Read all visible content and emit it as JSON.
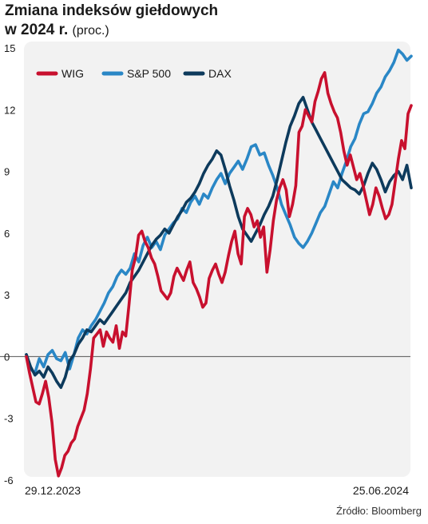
{
  "header": {
    "title_line1": "Zmiana indeksów giełdowych",
    "title_line2": "w 2024 r.",
    "unit": "(proc.)"
  },
  "source": "Źródło: Bloomberg",
  "colors": {
    "wig": "#c8102e",
    "sp500": "#2a87c6",
    "dax": "#0d3a5c",
    "plot_bg": "#f2f2f2",
    "zero_line": "#555555"
  },
  "chart_data": {
    "type": "line",
    "title": "Zmiana indeksów giełdowych w 2024 r.",
    "xlabel": "",
    "ylabel": "(proc.)",
    "ylim": [
      -6,
      15
    ],
    "yticks": [
      15,
      12,
      9,
      6,
      3,
      0,
      -3,
      -6
    ],
    "ytick_labels": [
      "15",
      "12",
      "9",
      "6",
      "3",
      "0",
      "-3",
      "-6"
    ],
    "x_labels": [
      "29.12.2023",
      "25.06.2024"
    ],
    "legend_position": "top-left",
    "grid": false,
    "series": [
      {
        "name": "WIG",
        "color": "#c8102e",
        "values": [
          0,
          -0.8,
          -1.5,
          -2.2,
          -2.3,
          -1.8,
          -1.2,
          -2.0,
          -3.2,
          -5.0,
          -5.8,
          -5.4,
          -4.8,
          -4.6,
          -4.2,
          -4.0,
          -3.4,
          -3.0,
          -2.6,
          -1.8,
          -0.6,
          0.9,
          1.1,
          1.3,
          0.5,
          1.2,
          0.9,
          0.7,
          1.5,
          0.4,
          1.2,
          1.0,
          2.5,
          4.2,
          4.8,
          5.9,
          6.1,
          5.6,
          5.3,
          4.8,
          4.5,
          3.9,
          3.2,
          3.0,
          2.8,
          3.1,
          3.9,
          4.3,
          4.0,
          3.7,
          4.2,
          4.6,
          3.6,
          3.3,
          2.9,
          2.4,
          2.6,
          3.8,
          4.2,
          4.5,
          4.0,
          3.6,
          4.1,
          4.9,
          5.6,
          6.1,
          5.0,
          4.5,
          6.8,
          7.2,
          6.9,
          6.3,
          6.6,
          5.8,
          6.3,
          4.1,
          5.2,
          6.6,
          7.6,
          8.2,
          8.6,
          8.1,
          6.8,
          7.4,
          8.3,
          10.9,
          11.2,
          12.0,
          11.7,
          11.4,
          12.4,
          12.9,
          13.5,
          13.8,
          12.8,
          12.3,
          11.9,
          11.6,
          10.9,
          10.0,
          9.3,
          9.8,
          9.2,
          8.6,
          8.9,
          8.3,
          7.6,
          6.9,
          7.4,
          8.2,
          7.8,
          7.2,
          6.7,
          6.9,
          7.4,
          8.5,
          9.6,
          10.5,
          10.1,
          11.8,
          12.2
        ]
      },
      {
        "name": "S&P 500",
        "color": "#2a87c6",
        "values": [
          0.1,
          -0.6,
          -0.8,
          -0.1,
          -0.5,
          0.1,
          0.3,
          -0.1,
          -0.2,
          0.2,
          -0.6,
          0.1,
          0.9,
          1.3,
          1.1,
          1.5,
          1.8,
          2.2,
          2.6,
          3.1,
          3.4,
          3.9,
          4.2,
          4.0,
          4.3,
          5.0,
          4.6,
          5.4,
          5.8,
          5.3,
          5.6,
          5.2,
          5.9,
          6.2,
          6.5,
          6.7,
          7.2,
          7.0,
          7.5,
          7.8,
          7.4,
          7.9,
          7.7,
          8.2,
          8.6,
          8.9,
          8.4,
          8.9,
          9.2,
          9.5,
          9.1,
          9.6,
          10.2,
          10.3,
          9.8,
          9.9,
          9.3,
          8.8,
          8.2,
          7.4,
          6.9,
          6.4,
          5.8,
          5.5,
          5.3,
          5.6,
          6.0,
          6.5,
          7.0,
          7.3,
          7.9,
          8.5,
          8.2,
          8.9,
          9.5,
          10.2,
          10.6,
          11.3,
          11.8,
          11.9,
          12.3,
          12.8,
          13.1,
          13.6,
          13.9,
          14.3,
          14.9,
          14.7,
          14.4,
          14.6
        ]
      },
      {
        "name": "DAX",
        "color": "#0d3a5c",
        "values": [
          0.1,
          -0.5,
          -0.9,
          -0.7,
          -1.0,
          -0.5,
          -0.8,
          -1.2,
          -1.5,
          -1.0,
          -0.2,
          0.1,
          0.6,
          0.9,
          1.3,
          1.2,
          1.5,
          1.8,
          1.6,
          1.9,
          2.2,
          2.5,
          2.8,
          3.1,
          3.6,
          3.9,
          4.2,
          4.6,
          5.0,
          5.4,
          5.7,
          5.9,
          6.2,
          6.0,
          6.4,
          6.8,
          7.1,
          7.5,
          7.7,
          8.0,
          8.4,
          8.9,
          9.3,
          9.6,
          10.0,
          9.8,
          9.1,
          8.3,
          7.6,
          6.8,
          6.2,
          5.9,
          5.6,
          6.0,
          6.4,
          6.9,
          7.3,
          7.8,
          8.6,
          9.5,
          10.4,
          11.2,
          11.7,
          12.3,
          12.6,
          12.0,
          11.4,
          11.0,
          10.6,
          10.2,
          9.8,
          9.4,
          9.0,
          8.6,
          8.4,
          8.2,
          8.1,
          7.9,
          8.3,
          8.9,
          9.4,
          9.1,
          8.6,
          8.0,
          8.5,
          8.8,
          9.0,
          8.6,
          9.3,
          8.2
        ]
      }
    ]
  }
}
